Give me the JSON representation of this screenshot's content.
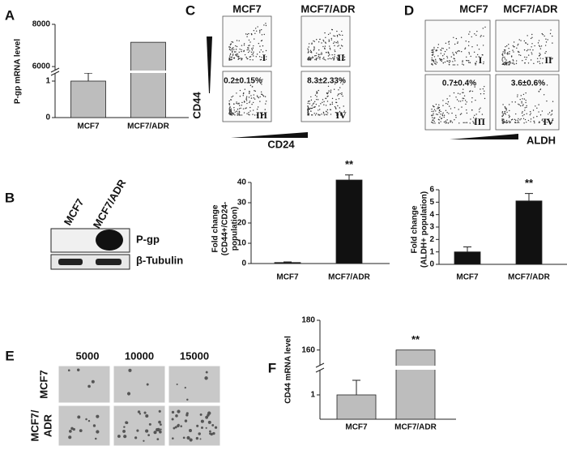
{
  "panel_labels": [
    "A",
    "B",
    "C",
    "D",
    "E",
    "F"
  ],
  "chart_data": [
    {
      "type": "bar",
      "ylabel": [
        "P-gp mRNA level"
      ],
      "categories": [
        "MCF7",
        "MCF7/ADR"
      ],
      "values": [
        1,
        7150
      ],
      "errors": [
        0.22,
        null
      ],
      "color": "#bdbdbd",
      "segments": [
        {
          "ylim": [
            0,
            1.2
          ],
          "yticks": [
            0,
            1
          ]
        },
        {
          "ylim": [
            5850,
            8000
          ],
          "yticks": [
            6000,
            8000
          ]
        }
      ]
    },
    {
      "type": "bar",
      "ylabel": [
        "Fold change",
        "(CD44+/CD24-",
        "population)"
      ],
      "categories": [
        "MCF7",
        "MCF7/ADR"
      ],
      "values": [
        0.5,
        41.2
      ],
      "errors": [
        0.3,
        2.5
      ],
      "color": "#111111",
      "annotation": "**",
      "segments": [
        {
          "ylim": [
            0,
            40
          ],
          "yticks": [
            0,
            10,
            20,
            30,
            40
          ]
        }
      ]
    },
    {
      "type": "bar",
      "ylabel": [
        "Fold change",
        "(ALDH+ population)"
      ],
      "categories": [
        "MCF7",
        "MCF7/ADR"
      ],
      "values": [
        1,
        5.1
      ],
      "errors": [
        0.4,
        0.6
      ],
      "color": "#111111",
      "annotation": "**",
      "segments": [
        {
          "ylim": [
            0,
            6
          ],
          "yticks": [
            0,
            1,
            2,
            3,
            4,
            5,
            6
          ]
        }
      ]
    },
    {
      "type": "bar",
      "ylabel": [
        "CD44 mRNA level"
      ],
      "categories": [
        "MCF7",
        "MCF7/ADR"
      ],
      "values": [
        1,
        160
      ],
      "errors": [
        0.6,
        null
      ],
      "color": "#bdbdbd",
      "annotation": "**",
      "segments": [
        {
          "ylim": [
            0,
            2
          ],
          "yticks": [
            1
          ]
        },
        {
          "ylim": [
            150,
            180
          ],
          "yticks": [
            160,
            180
          ]
        }
      ]
    }
  ],
  "blot": {
    "lanes": [
      "MCF7",
      "MCF7/ADR"
    ],
    "bands": [
      "P-gp",
      "β-Tubulin"
    ]
  },
  "flow_c": {
    "columns": [
      "MCF7",
      "MCF7/ADR"
    ],
    "quadrants": [
      "I",
      "II",
      "III",
      "IV"
    ],
    "percents": [
      "0.2±0.15%",
      "8.3±2.33%"
    ],
    "yaxis": "CD44",
    "xaxis": "CD24"
  },
  "flow_d": {
    "columns": [
      "MCF7",
      "MCF7/ADR"
    ],
    "quadrants": [
      "I",
      "II",
      "III",
      "IV"
    ],
    "percents": [
      "0.7±0.4%",
      "3.6±0.6%"
    ],
    "xaxis": "ALDH"
  },
  "colony": {
    "columns": [
      "5000",
      "10000",
      "15000"
    ],
    "row_labels": [
      [
        "MCF7"
      ],
      [
        "MCF7/",
        "ADR"
      ]
    ]
  }
}
